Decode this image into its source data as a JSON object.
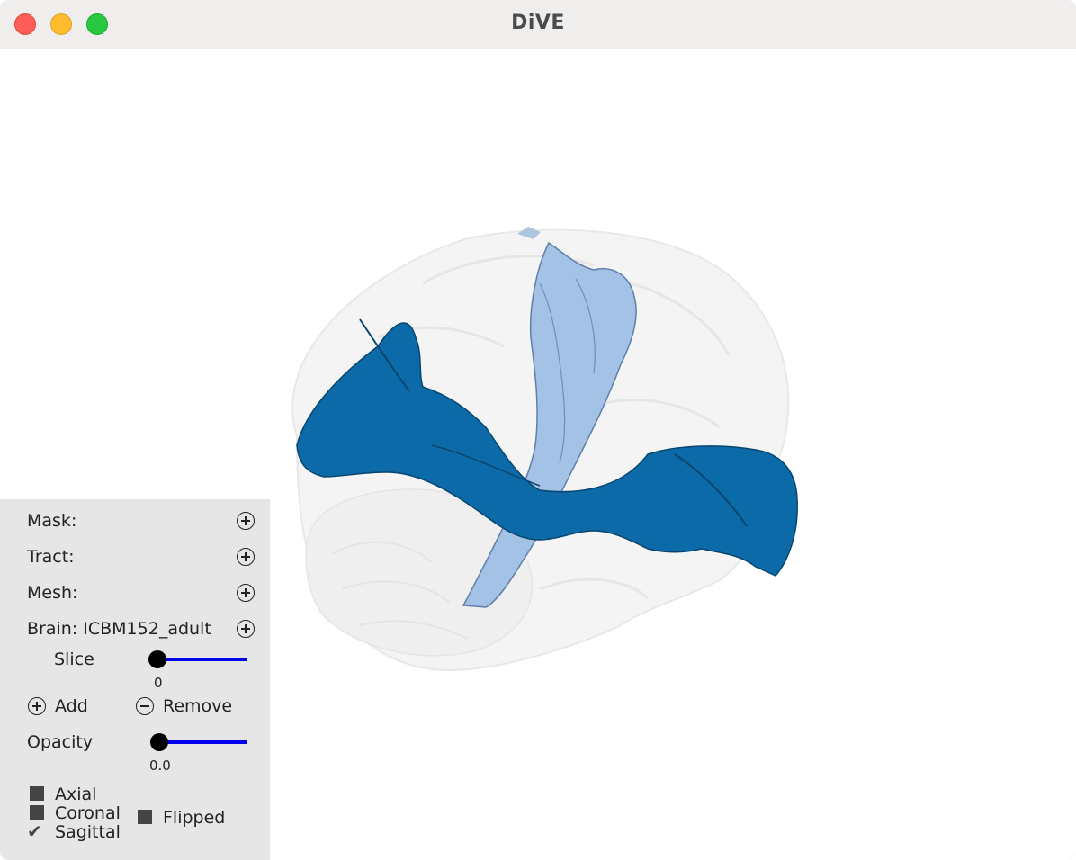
{
  "window": {
    "title": "DiVE"
  },
  "panel": {
    "mask_label": "Mask:",
    "tract_label": "Tract:",
    "mesh_label": "Mesh:",
    "brain_label": "Brain: ICBM152_adult",
    "slice": {
      "label": "Slice",
      "value": "0",
      "position": 0.0
    },
    "add_label": "Add",
    "remove_label": "Remove",
    "opacity": {
      "label": "Opacity",
      "value": "0.0",
      "position": 0.0
    },
    "views": {
      "axial": {
        "label": "Axial",
        "checked": false
      },
      "coronal": {
        "label": "Coronal",
        "checked": false
      },
      "sagittal": {
        "label": "Sagittal",
        "checked": true
      },
      "flipped": {
        "label": "Flipped",
        "checked": false
      }
    },
    "slider_color": "#0000ee"
  },
  "colors": {
    "tract_primary": "#0d6aa8",
    "tract_secondary": "#a3c2e6",
    "brain_shell": "#d9d9d9"
  }
}
